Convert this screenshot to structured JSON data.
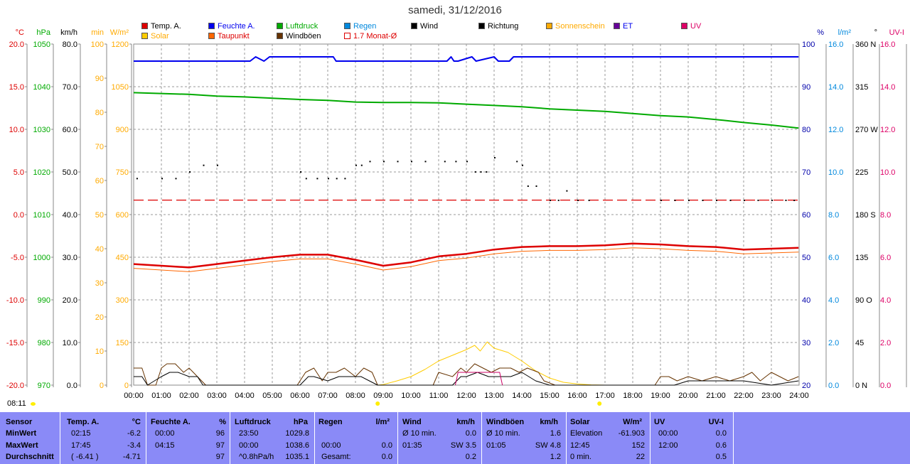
{
  "title": "samedi, 31/12/2016",
  "clock": "08:11",
  "colors": {
    "temp": "#dd0000",
    "dew": "#ff6600",
    "hum": "#0000ee",
    "press": "#00aa00",
    "solar": "#ffcc00",
    "wind": "#000000",
    "gust": "#663300",
    "uv": "#cc0066",
    "et": "#660099",
    "rain": "#0088dd",
    "stats_bg": "#8a8af7"
  },
  "legend": [
    {
      "label": "Temp. A.",
      "color": "#dd0000",
      "text_color": "#000000"
    },
    {
      "label": "Feuchte A.",
      "color": "#0000ee",
      "text_color": "#0000ee"
    },
    {
      "label": "Luftdruck",
      "color": "#00aa00",
      "text_color": "#00aa00"
    },
    {
      "label": "Regen",
      "color": "#0088dd",
      "text_color": "#0088dd"
    },
    {
      "label": "Wind",
      "color": "#000000",
      "text_color": "#000000"
    },
    {
      "label": "Richtung",
      "color": "#000000",
      "text_color": "#000000"
    },
    {
      "label": "Sonnenschein",
      "color": "#ffaa00",
      "text_color": "#ffaa00"
    },
    {
      "label": "ET",
      "color": "#660099",
      "text_color": "#0000ee"
    },
    {
      "label": "UV",
      "color": "#dd0066",
      "text_color": "#dd0066"
    },
    {
      "label": "Solar",
      "color": "#ffcc00",
      "text_color": "#ffaa00"
    },
    {
      "label": "Taupunkt",
      "color": "#ff6600",
      "text_color": "#dd0000"
    },
    {
      "label": "Windböen",
      "color": "#663300",
      "text_color": "#000000"
    },
    {
      "label": "1.7 Monat-Ø",
      "color": "#ffffff",
      "text_color": "#dd0000"
    }
  ],
  "chart_data": {
    "type": "line",
    "x_ticks": [
      "00:00",
      "01:00",
      "02:00",
      "03:00",
      "04:00",
      "05:00",
      "06:00",
      "07:00",
      "08:00",
      "09:00",
      "10:00",
      "11:00",
      "12:00",
      "13:00",
      "14:00",
      "15:00",
      "16:00",
      "17:00",
      "18:00",
      "19:00",
      "20:00",
      "21:00",
      "22:00",
      "23:00",
      "24:00"
    ],
    "left_axes": [
      {
        "unit": "°C",
        "color": "#dd0000",
        "ticks": [
          "20.0",
          "15.0",
          "10.0",
          "5.0",
          "0.0",
          "-5.0",
          "-10.0",
          "-15.0",
          "-20.0"
        ],
        "ylim": [
          -20,
          20
        ]
      },
      {
        "unit": "hPa",
        "color": "#00aa00",
        "ticks": [
          "1050",
          "1040",
          "1030",
          "1020",
          "1010",
          "1000",
          "990",
          "980",
          "970"
        ],
        "ylim": [
          970,
          1050
        ]
      },
      {
        "unit": "km/h",
        "color": "#000000",
        "ticks": [
          "80.0",
          "70.0",
          "60.0",
          "50.0",
          "40.0",
          "30.0",
          "20.0",
          "10.0",
          "0.0"
        ],
        "ylim": [
          0,
          80
        ]
      },
      {
        "unit": "min",
        "color": "#ffaa00",
        "ticks": [
          "100",
          "90",
          "80",
          "70",
          "60",
          "50",
          "40",
          "30",
          "20",
          "10",
          "0"
        ],
        "ylim": [
          0,
          100
        ]
      },
      {
        "unit": "W/m²",
        "color": "#ffaa00",
        "ticks": [
          "1200",
          "1050",
          "900",
          "750",
          "600",
          "450",
          "300",
          "150",
          "0"
        ],
        "ylim": [
          0,
          1200
        ]
      }
    ],
    "right_axes": [
      {
        "unit": "%",
        "color": "#0000aa",
        "ticks": [
          "100",
          "90",
          "80",
          "70",
          "60",
          "50",
          "40",
          "30",
          "20"
        ],
        "ylim": [
          20,
          100
        ]
      },
      {
        "unit": "l/m²",
        "color": "#0088dd",
        "ticks": [
          "16.0",
          "14.0",
          "12.0",
          "10.0",
          "8.0",
          "6.0",
          "4.0",
          "2.0",
          "0.0"
        ],
        "ylim": [
          0,
          16
        ]
      },
      {
        "unit": "°",
        "color": "#000000",
        "ticks": [
          "360 N",
          "315",
          "270 W",
          "225",
          "180 S",
          "135",
          "90 O",
          "45",
          "0 N"
        ],
        "ylim": [
          0,
          360
        ]
      },
      {
        "unit": "UV-I",
        "color": "#dd0066",
        "ticks": [
          "16.0",
          "14.0",
          "12.0",
          "10.0",
          "8.0",
          "6.0",
          "4.0",
          "2.0",
          "0.0"
        ],
        "ylim": [
          0,
          16
        ]
      }
    ],
    "monthly_avg_temp": 1.7,
    "series": [
      {
        "name": "Temp. A.",
        "unit": "°C",
        "x": [
          0,
          1,
          2,
          3,
          4,
          5,
          6,
          7,
          8,
          9,
          10,
          11,
          12,
          13,
          14,
          15,
          16,
          17,
          18,
          19,
          20,
          21,
          22,
          23,
          23.98
        ],
        "y": [
          -5.8,
          -6.0,
          -6.2,
          -5.8,
          -5.4,
          -5.0,
          -4.7,
          -4.7,
          -5.3,
          -6.0,
          -5.6,
          -4.9,
          -4.6,
          -4.1,
          -3.8,
          -3.7,
          -3.7,
          -3.6,
          -3.4,
          -3.5,
          -3.7,
          -3.8,
          -4.1,
          -4.0,
          -3.9
        ]
      },
      {
        "name": "Taupunkt",
        "unit": "°C",
        "x": [
          0,
          1,
          2,
          3,
          4,
          5,
          6,
          7,
          8,
          9,
          10,
          11,
          12,
          13,
          14,
          15,
          16,
          17,
          18,
          19,
          20,
          21,
          22,
          23,
          23.98
        ],
        "y": [
          -6.3,
          -6.5,
          -6.7,
          -6.3,
          -5.9,
          -5.5,
          -5.2,
          -5.2,
          -5.8,
          -6.5,
          -6.1,
          -5.4,
          -5.1,
          -4.6,
          -4.3,
          -4.2,
          -4.2,
          -4.1,
          -3.9,
          -4.0,
          -4.2,
          -4.3,
          -4.6,
          -4.5,
          -4.4
        ]
      },
      {
        "name": "Feuchte A.",
        "unit": "%",
        "x": [
          0,
          4.2,
          4.4,
          4.7,
          4.9,
          7.2,
          7.3,
          11.3,
          11.45,
          11.55,
          11.7,
          12.2,
          12.35,
          13.0,
          13.15,
          13.55,
          13.7,
          23.98
        ],
        "y": [
          96,
          96,
          97,
          96,
          97,
          97,
          96,
          96,
          97,
          96,
          96,
          97,
          96,
          97,
          96,
          96,
          97,
          97
        ]
      },
      {
        "name": "Luftdruck",
        "unit": "hPa",
        "x": [
          0,
          1,
          2,
          3,
          4,
          5,
          6,
          7,
          8,
          9,
          10,
          11,
          12,
          13,
          14,
          15,
          16,
          17,
          18,
          19,
          20,
          21,
          22,
          23,
          23.98
        ],
        "y": [
          1038.6,
          1038.4,
          1038.2,
          1037.8,
          1037.6,
          1037.3,
          1037.0,
          1036.8,
          1036.4,
          1036.3,
          1036.3,
          1036.2,
          1035.9,
          1035.6,
          1035.3,
          1034.8,
          1034.5,
          1034.2,
          1033.7,
          1033.2,
          1032.9,
          1032.3,
          1031.6,
          1031.0,
          1030.3
        ]
      },
      {
        "name": "Solar",
        "unit": "W/m²",
        "x": [
          8.8,
          9.0,
          9.5,
          10,
          10.5,
          11,
          11.5,
          12,
          12.3,
          12.5,
          12.75,
          13,
          13.5,
          14,
          14.5,
          15,
          15.5,
          16,
          16.5,
          17
        ],
        "y": [
          0,
          2,
          15,
          30,
          55,
          85,
          105,
          125,
          140,
          120,
          152,
          130,
          115,
          85,
          50,
          25,
          10,
          4,
          1,
          0
        ]
      },
      {
        "name": "Windböen",
        "unit": "km/h",
        "x": [
          0,
          0.3,
          0.5,
          0.8,
          1,
          1.2,
          1.5,
          1.8,
          2,
          2.3,
          2.6,
          5.9,
          6.2,
          6.5,
          6.8,
          7,
          7.3,
          7.6,
          8,
          8.3,
          8.6,
          8.8,
          10.8,
          11,
          11.5,
          11.8,
          12,
          12.3,
          12.6,
          12.9,
          13.2,
          13.6,
          13.9,
          14.2,
          14.6,
          14.8,
          15.2,
          18.8,
          19,
          19.3,
          19.6,
          20,
          20.5,
          21,
          21.5,
          22,
          22.3,
          22.6,
          23,
          23.3,
          23.6,
          23.98
        ],
        "y": [
          4,
          4,
          0,
          0,
          4,
          5,
          5,
          3,
          4,
          2,
          0,
          0,
          3,
          4,
          1,
          3,
          3,
          4,
          2,
          4,
          3,
          0,
          0,
          3,
          2,
          4,
          3,
          5,
          4,
          3,
          4,
          4,
          3,
          4,
          3,
          1,
          0,
          0,
          2,
          2,
          1,
          2,
          1,
          2,
          1,
          2,
          3,
          1,
          3,
          2,
          1,
          2
        ]
      },
      {
        "name": "Wind",
        "unit": "km/h",
        "x": [
          0,
          0.3,
          0.5,
          1,
          1.3,
          1.6,
          2,
          2.3,
          2.5,
          6,
          6.3,
          6.5,
          7,
          7.4,
          7.8,
          8.2,
          8.5,
          8.8,
          11.5,
          11.8,
          12,
          12.4,
          12.8,
          13.2,
          13.6,
          14,
          14.5,
          15,
          19.5,
          20,
          21,
          22,
          23,
          23.98
        ],
        "y": [
          2,
          2,
          0,
          2,
          3,
          3,
          2,
          2,
          0,
          0,
          2,
          2,
          1,
          2,
          2,
          2,
          1,
          0,
          0,
          2,
          2,
          3,
          2,
          2,
          2,
          3,
          1,
          0,
          0,
          1,
          1,
          1,
          0,
          1
        ]
      },
      {
        "name": "UV",
        "unit": "UV-I",
        "x": [
          11.6,
          11.7,
          13.2,
          13.3
        ],
        "y": [
          0,
          0.6,
          0.6,
          0
        ]
      },
      {
        "name": "Richtung",
        "unit": "°",
        "x": [
          0.1,
          1.0,
          1.5,
          2.0,
          2.5,
          3.0,
          6.0,
          6.2,
          6.6,
          7.0,
          7.3,
          7.6,
          8.0,
          8.2,
          8.5,
          9.0,
          9.5,
          10.0,
          10.5,
          11.2,
          11.6,
          12.0,
          12.3,
          12.5,
          12.7,
          13.0,
          13.8,
          14.0,
          14.2,
          14.5,
          15.0,
          15.3,
          15.6,
          16.0,
          16.4,
          19.0,
          19.5,
          20.0,
          20.5,
          21.0,
          21.5,
          22.0,
          22.5,
          23.0,
          23.5,
          23.8
        ],
        "y": [
          218,
          218,
          218,
          225,
          232,
          232,
          225,
          218,
          218,
          218,
          218,
          218,
          232,
          232,
          236,
          236,
          236,
          236,
          236,
          236,
          236,
          236,
          225,
          225,
          225,
          240,
          236,
          232,
          210,
          210,
          195,
          195,
          205,
          195,
          195,
          195,
          195,
          195,
          195,
          195,
          195,
          195,
          195,
          195,
          195,
          195
        ]
      }
    ]
  },
  "stats": {
    "headers": [
      "Sensor",
      "Temp. A.",
      "°C",
      "Feuchte A.",
      "%",
      "Luftdruck",
      "hPa",
      "Regen",
      "l/m²",
      "Wind",
      "km/h",
      "Windböen",
      "km/h",
      "Solar",
      "W/m²",
      "UV",
      "UV-I"
    ],
    "row_labels": [
      "MinWert",
      "MaxWert",
      "Durchschnitt"
    ],
    "temp": [
      [
        "02:15",
        "-6.2"
      ],
      [
        "17:45",
        "-3.4"
      ],
      [
        "( -6.41 )",
        "-4.71"
      ]
    ],
    "hum": [
      [
        "00:00",
        "96"
      ],
      [
        "04:15",
        "97"
      ],
      [
        "",
        "97"
      ]
    ],
    "press": [
      [
        "23:50",
        "1029.8"
      ],
      [
        "00:00",
        "1038.6"
      ],
      [
        "^0.8hPa/h",
        "1035.1"
      ]
    ],
    "rain": [
      [
        "",
        ""
      ],
      [
        "00:00",
        "0.0"
      ],
      [
        "Gesamt:",
        "0.0"
      ]
    ],
    "wind": [
      [
        "Ø 10 min.",
        "0.0"
      ],
      [
        "01:35",
        "SW 3.5"
      ],
      [
        "",
        "0.2"
      ]
    ],
    "gust": [
      [
        "Ø 10 min.",
        "1.6"
      ],
      [
        "01:05",
        "SW 4.8"
      ],
      [
        "",
        "1.2"
      ]
    ],
    "solar": [
      [
        "Elevation",
        "-61.903"
      ],
      [
        "12:45",
        "152"
      ],
      [
        "0 min.",
        "22"
      ]
    ],
    "uv": [
      [
        "00:00",
        "0.0"
      ],
      [
        "12:00",
        "0.6"
      ],
      [
        "",
        "0.5"
      ]
    ]
  }
}
